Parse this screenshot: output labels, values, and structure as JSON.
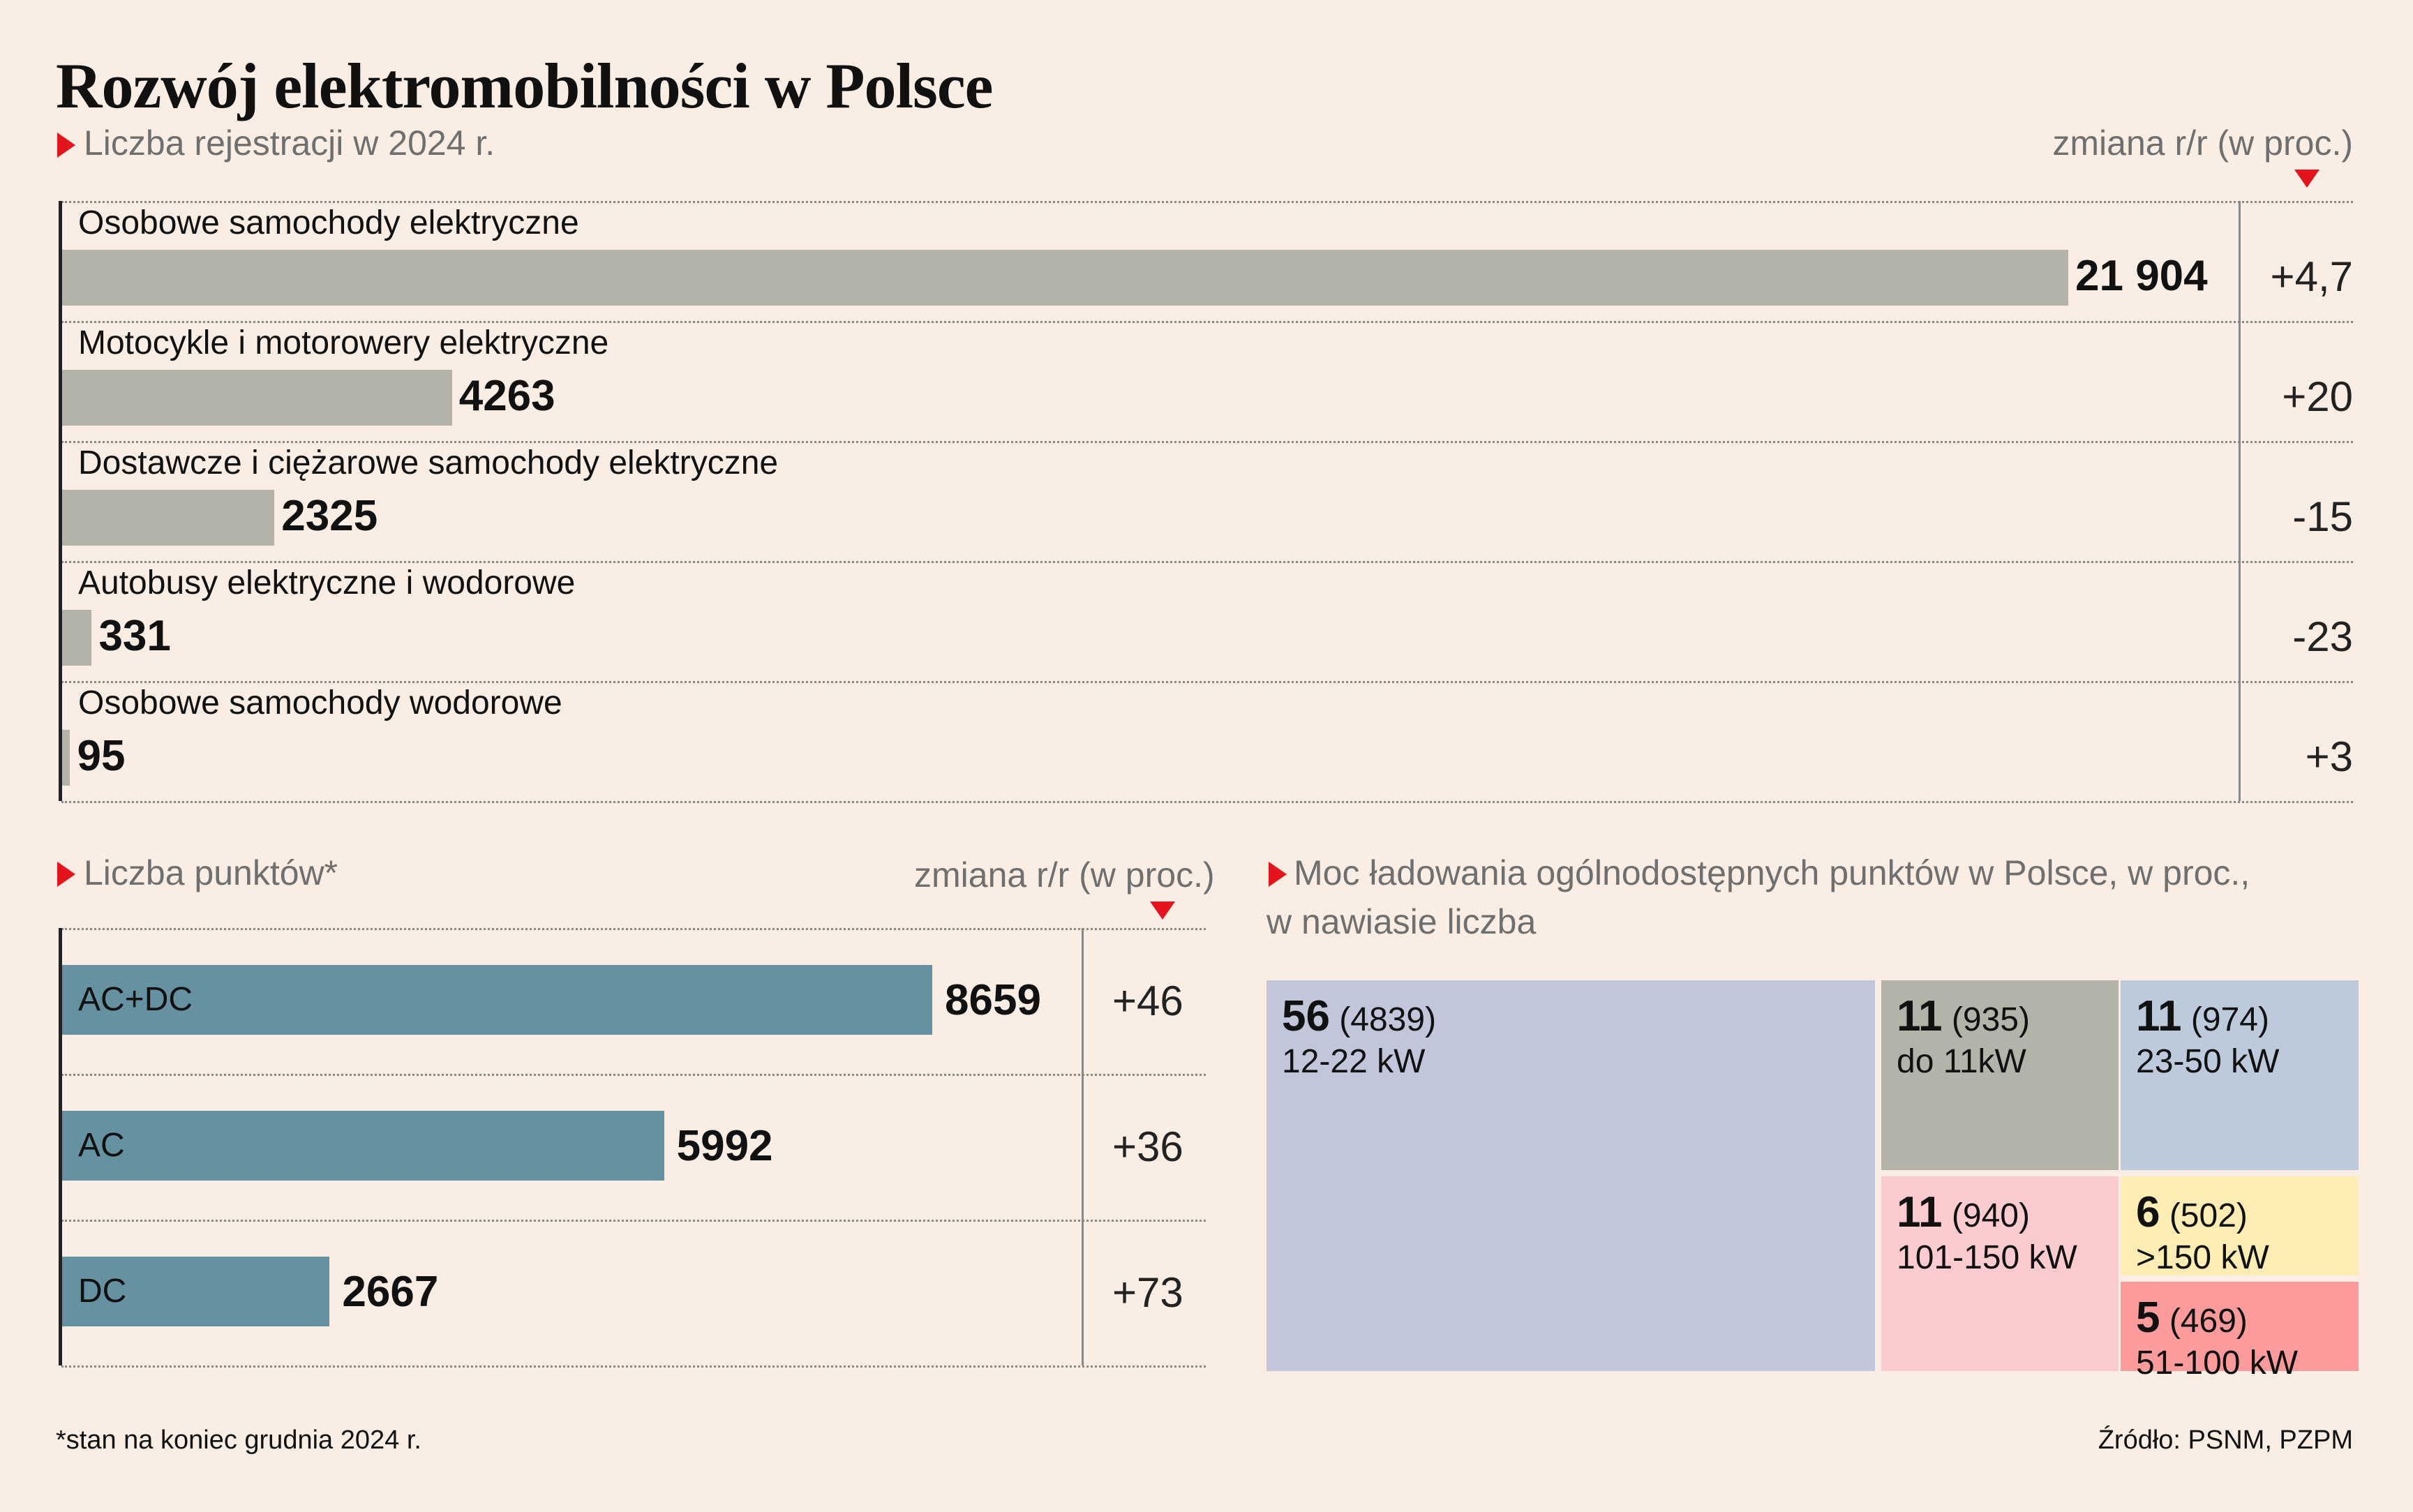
{
  "title": "Rozwój elektromobilności w Polsce",
  "registrations": {
    "subtitle": "Liczba rejestracji w 2024 r.",
    "change_header": "zmiana r/r (w proc.)"
  },
  "points": {
    "subtitle": "Liczba punktów*",
    "change_header": "zmiana r/r (w proc.)"
  },
  "power": {
    "subtitle_line1": "Moc ładowania ogólnodostępnych punktów w Polsce, w proc.,",
    "subtitle_line2": "w nawiasie liczba"
  },
  "footnote": "*stan na koniec grudnia 2024 r.",
  "source": "Źródło: PSNM, PZPM",
  "colors": {
    "background": "#faede4",
    "accent_red": "#e3141b",
    "registration_bar": "#b3b3aa",
    "points_bar": "#6691a1"
  },
  "chart_data": [
    {
      "type": "bar",
      "orientation": "horizontal",
      "categories": [
        "Osobowe samochody elektryczne",
        "Motocykle i motorowery elektryczne",
        "Dostawcze i ciężarowe samochody elektryczne",
        "Autobusy elektryczne i wodorowe",
        "Osobowe samochody wodorowe"
      ],
      "values": [
        21904,
        4263,
        2325,
        331,
        95
      ],
      "value_labels": [
        "21 904",
        "4263",
        "2325",
        "331",
        "95"
      ],
      "changes": [
        "+4,7",
        "+20",
        "-15",
        "-23",
        "+3"
      ]
    },
    {
      "type": "bar",
      "orientation": "horizontal",
      "categories": [
        "AC+DC",
        "AC",
        "DC"
      ],
      "values": [
        8659,
        5992,
        2667
      ],
      "value_labels": [
        "8659",
        "5992",
        "2667"
      ],
      "changes": [
        "+46",
        "+36",
        "+73"
      ]
    },
    {
      "type": "treemap",
      "cells": [
        {
          "pct": "56",
          "count": "(4839)",
          "label": "12-22 kW",
          "color": "#c2c6da"
        },
        {
          "pct": "11",
          "count": "(935)",
          "label": "do 11kW",
          "color": "#b3b3aa"
        },
        {
          "pct": "11",
          "count": "(974)",
          "label": "23-50 kW",
          "color": "#bccadb"
        },
        {
          "pct": "11",
          "count": "(940)",
          "label": "101-150 kW",
          "color": "#fccbcf"
        },
        {
          "pct": "6",
          "count": "(502)",
          "label": ">150 kW",
          "color": "#fdedb4"
        },
        {
          "pct": "5",
          "count": "(469)",
          "label": "51-100 kW",
          "color": "#fc9b9b"
        }
      ]
    }
  ]
}
